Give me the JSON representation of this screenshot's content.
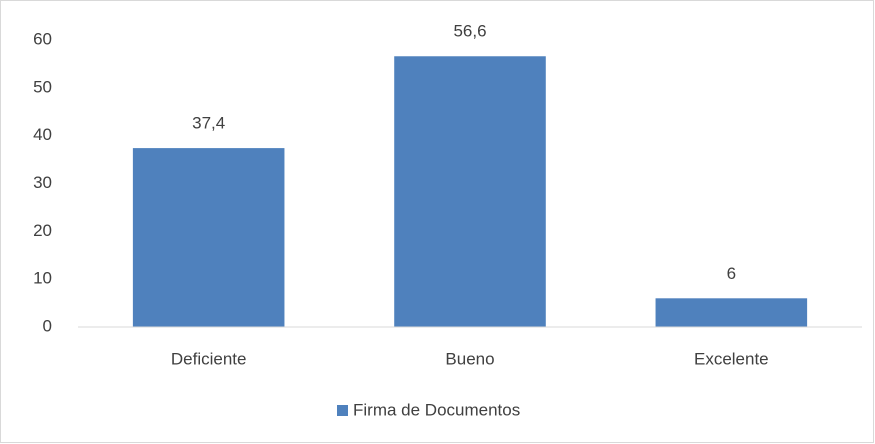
{
  "chart_data": {
    "type": "bar",
    "categories": [
      "Deficiente",
      "Bueno",
      "Excelente"
    ],
    "series": [
      {
        "name": "Firma de Documentos",
        "color": "#4f81bd",
        "values": [
          37.4,
          56.6,
          6
        ],
        "value_labels": [
          "37,4",
          "56,6",
          "6"
        ]
      }
    ],
    "ylim": [
      0,
      60
    ],
    "yticks": [
      0,
      10,
      20,
      30,
      40,
      50,
      60
    ],
    "grid": false,
    "legend": "bottom"
  }
}
